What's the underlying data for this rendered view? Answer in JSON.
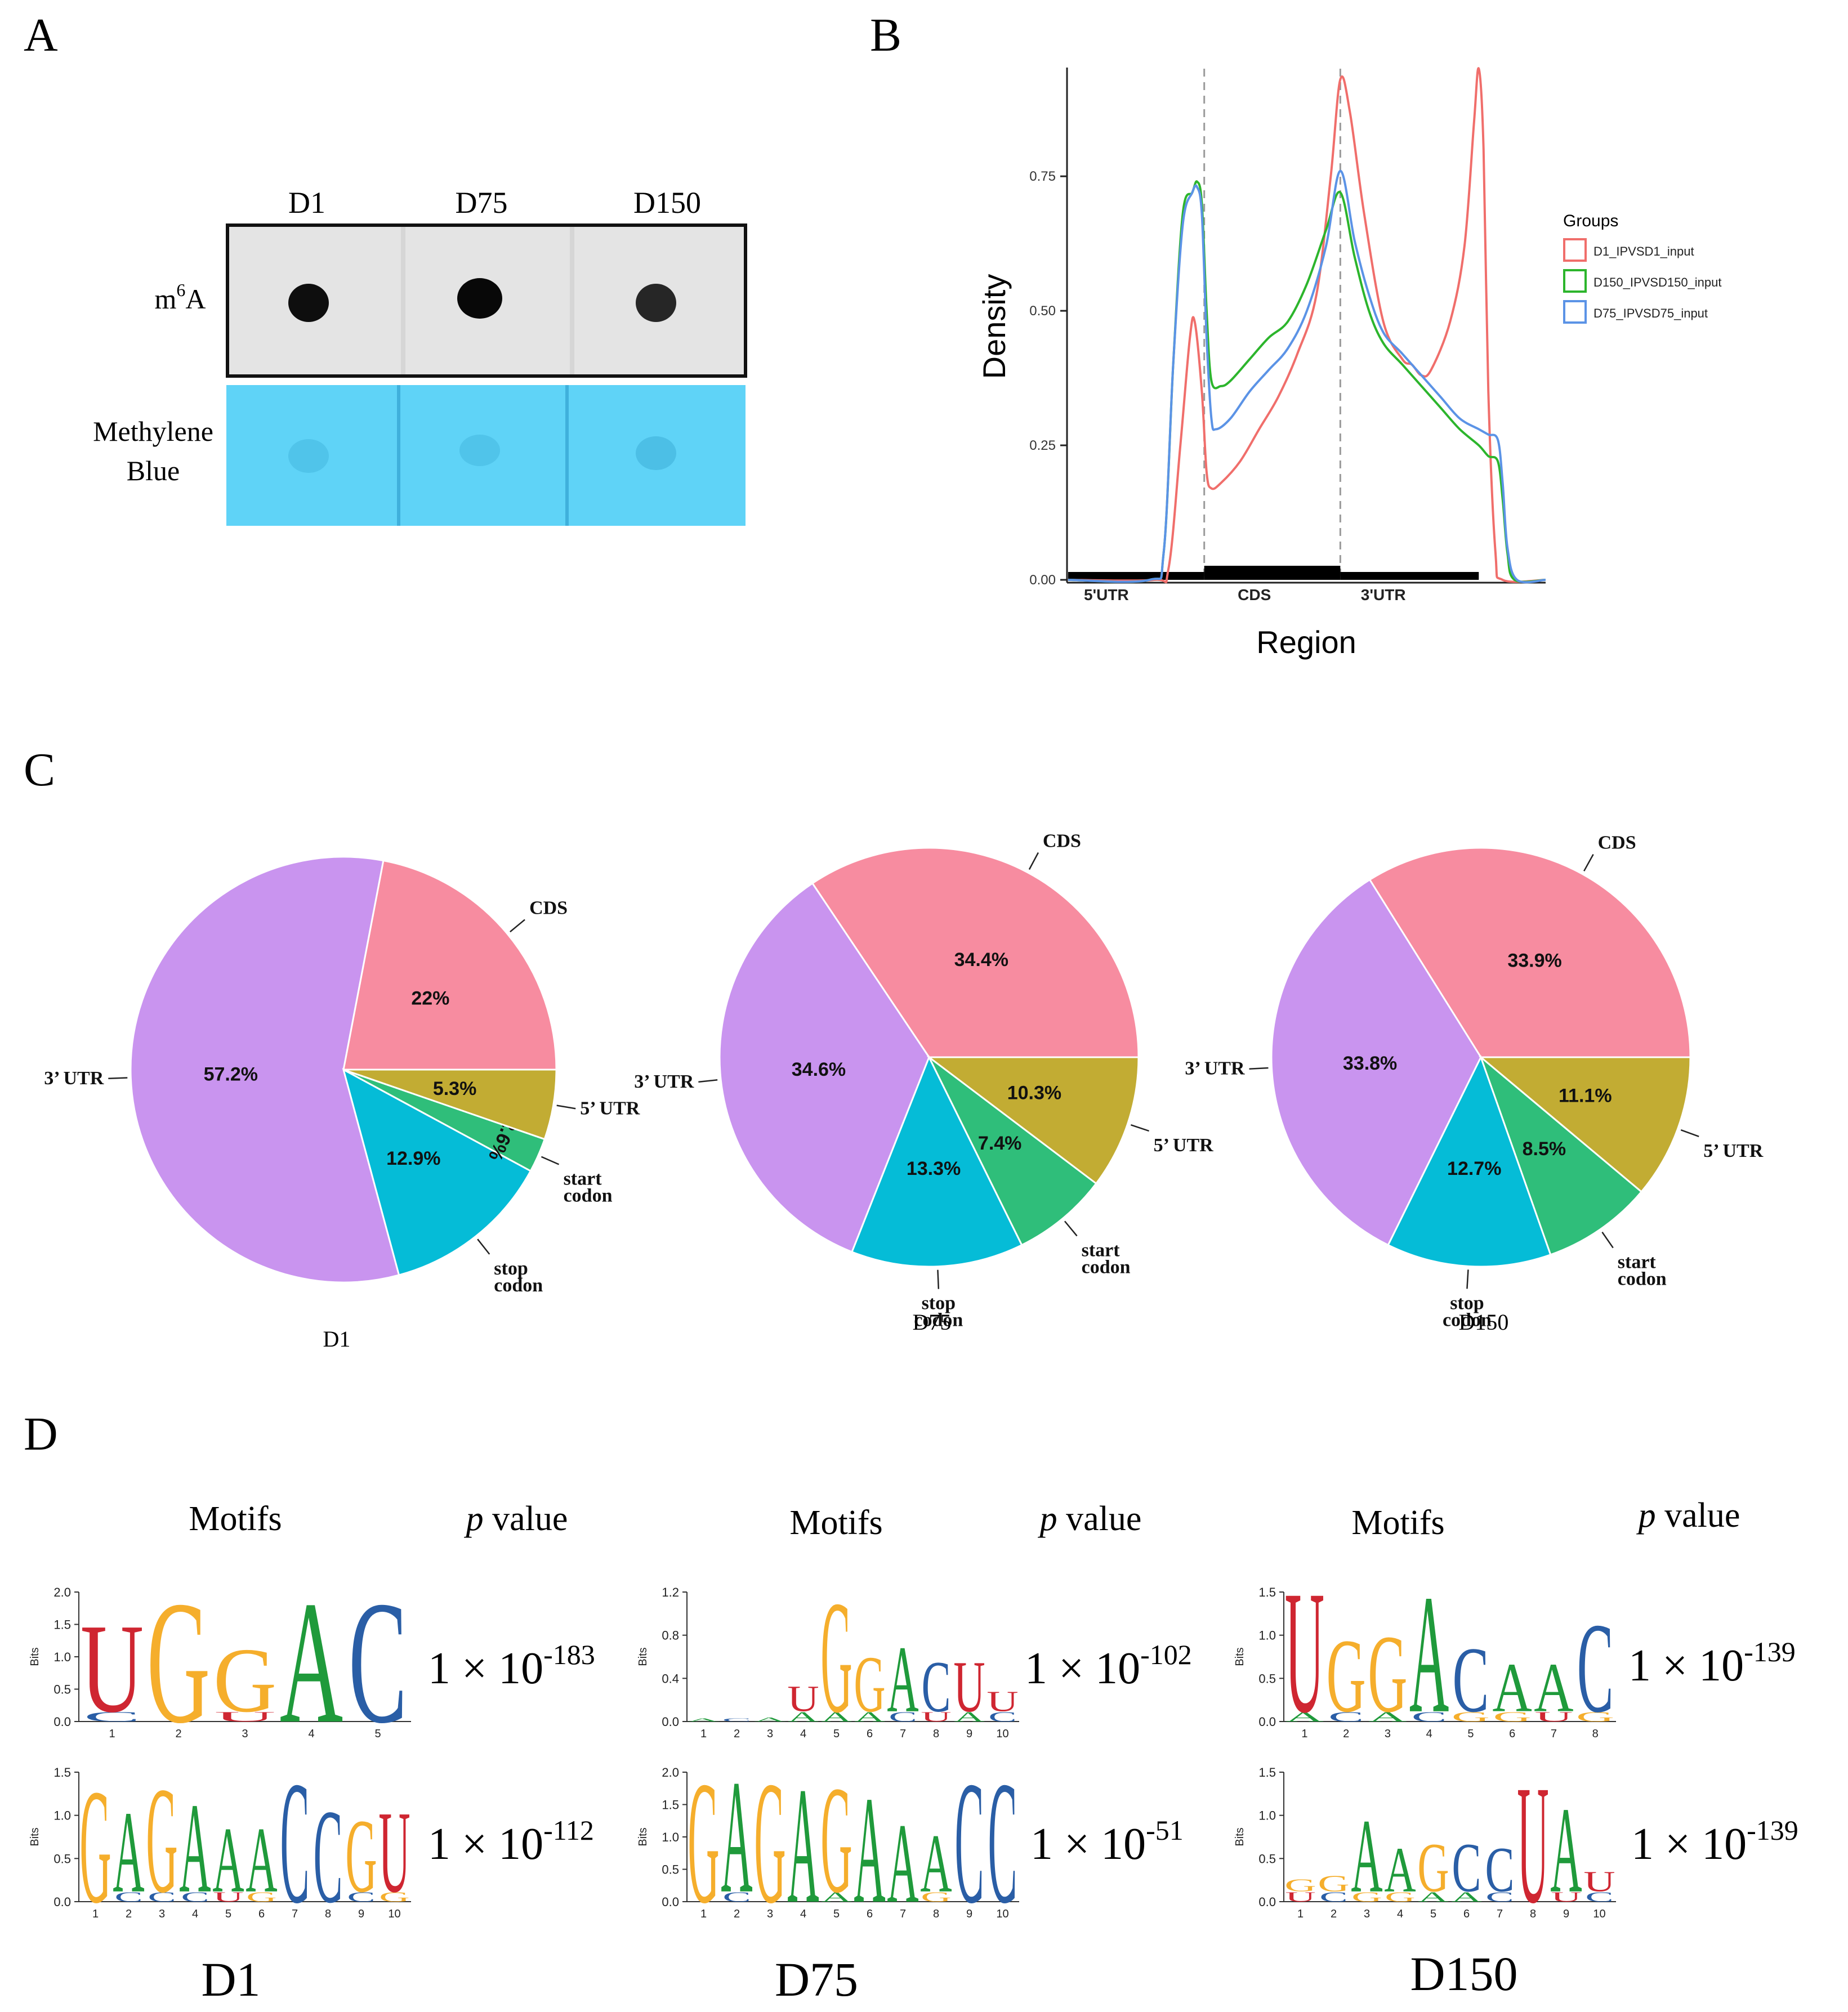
{
  "panels": {
    "a": {
      "letter": "A",
      "columns": [
        "D1",
        "D75",
        "D150"
      ],
      "row_m6a_base": "m",
      "row_m6a_sup": "6",
      "row_m6a_tail": "A",
      "row_blue_line1": "Methylene",
      "row_blue_line2": "Blue",
      "colors": {
        "blot_bg": "#e6e6e6",
        "dot": "#0d0d0d",
        "blue": "#5fd3f7"
      }
    },
    "b": {
      "letter": "B",
      "chart_data": {
        "type": "line",
        "xlabel": "Region",
        "ylabel": "Density",
        "x_categories": [
          "5'UTR",
          "CDS",
          "3'UTR"
        ],
        "y_ticks": [
          "0.00",
          "0.25",
          "0.50",
          "0.75"
        ],
        "ylim": [
          0,
          0.95
        ],
        "x_range": [
          0,
          1
        ],
        "boundaries": [
          0.285,
          0.57
        ],
        "legend_title": "Groups",
        "legend_position": "right",
        "grid": false,
        "series": [
          {
            "name": "D1_IPVSD1_input",
            "color": "#f06e6b",
            "points": [
              [
                0,
                0
              ],
              [
                0.18,
                0
              ],
              [
                0.21,
                0.02
              ],
              [
                0.235,
                0.25
              ],
              [
                0.255,
                0.45
              ],
              [
                0.265,
                0.48
              ],
              [
                0.28,
                0.35
              ],
              [
                0.29,
                0.2
              ],
              [
                0.3,
                0.17
              ],
              [
                0.32,
                0.18
              ],
              [
                0.36,
                0.22
              ],
              [
                0.4,
                0.28
              ],
              [
                0.44,
                0.34
              ],
              [
                0.48,
                0.42
              ],
              [
                0.52,
                0.53
              ],
              [
                0.55,
                0.75
              ],
              [
                0.57,
                0.93
              ],
              [
                0.59,
                0.87
              ],
              [
                0.62,
                0.68
              ],
              [
                0.66,
                0.48
              ],
              [
                0.7,
                0.41
              ],
              [
                0.72,
                0.4
              ],
              [
                0.74,
                0.38
              ],
              [
                0.76,
                0.39
              ],
              [
                0.8,
                0.48
              ],
              [
                0.83,
                0.62
              ],
              [
                0.85,
                0.85
              ],
              [
                0.86,
                0.95
              ],
              [
                0.87,
                0.8
              ],
              [
                0.88,
                0.35
              ],
              [
                0.895,
                0.05
              ],
              [
                0.91,
                0
              ],
              [
                1,
                0
              ]
            ]
          },
          {
            "name": "D150_IPVSD150_input",
            "color": "#2cb52c",
            "points": [
              [
                0,
                0
              ],
              [
                0.17,
                0
              ],
              [
                0.2,
                0.05
              ],
              [
                0.22,
                0.4
              ],
              [
                0.24,
                0.68
              ],
              [
                0.26,
                0.72
              ],
              [
                0.27,
                0.74
              ],
              [
                0.28,
                0.7
              ],
              [
                0.29,
                0.5
              ],
              [
                0.3,
                0.37
              ],
              [
                0.32,
                0.36
              ],
              [
                0.34,
                0.37
              ],
              [
                0.38,
                0.41
              ],
              [
                0.42,
                0.45
              ],
              [
                0.46,
                0.48
              ],
              [
                0.5,
                0.55
              ],
              [
                0.54,
                0.65
              ],
              [
                0.57,
                0.72
              ],
              [
                0.6,
                0.6
              ],
              [
                0.63,
                0.5
              ],
              [
                0.66,
                0.44
              ],
              [
                0.7,
                0.4
              ],
              [
                0.74,
                0.36
              ],
              [
                0.78,
                0.32
              ],
              [
                0.82,
                0.28
              ],
              [
                0.86,
                0.25
              ],
              [
                0.88,
                0.23
              ],
              [
                0.9,
                0.22
              ],
              [
                0.91,
                0.15
              ],
              [
                0.92,
                0.05
              ],
              [
                0.935,
                0
              ],
              [
                1,
                0
              ]
            ]
          },
          {
            "name": "D75_IPVSD75_input",
            "color": "#5b93e6",
            "points": [
              [
                0,
                0
              ],
              [
                0.17,
                0
              ],
              [
                0.2,
                0.05
              ],
              [
                0.22,
                0.4
              ],
              [
                0.24,
                0.66
              ],
              [
                0.26,
                0.72
              ],
              [
                0.27,
                0.73
              ],
              [
                0.28,
                0.68
              ],
              [
                0.29,
                0.45
              ],
              [
                0.3,
                0.3
              ],
              [
                0.31,
                0.28
              ],
              [
                0.34,
                0.3
              ],
              [
                0.38,
                0.35
              ],
              [
                0.42,
                0.39
              ],
              [
                0.46,
                0.43
              ],
              [
                0.5,
                0.5
              ],
              [
                0.54,
                0.62
              ],
              [
                0.57,
                0.76
              ],
              [
                0.6,
                0.63
              ],
              [
                0.63,
                0.53
              ],
              [
                0.66,
                0.46
              ],
              [
                0.7,
                0.42
              ],
              [
                0.74,
                0.38
              ],
              [
                0.78,
                0.34
              ],
              [
                0.82,
                0.3
              ],
              [
                0.86,
                0.28
              ],
              [
                0.88,
                0.27
              ],
              [
                0.9,
                0.26
              ],
              [
                0.91,
                0.18
              ],
              [
                0.92,
                0.06
              ],
              [
                0.94,
                0
              ],
              [
                1,
                0
              ]
            ]
          }
        ]
      }
    },
    "c": {
      "letter": "C",
      "chart_data": [
        {
          "type": "pie",
          "title": "D1",
          "slices": [
            {
              "label": "CDS",
              "value": 22.0,
              "text": "22%",
              "color": "#f78ca0"
            },
            {
              "label": "3’ UTR",
              "value": 57.2,
              "text": "57.2%",
              "color": "#c994ef"
            },
            {
              "label": "stop codon",
              "value": 12.9,
              "text": "12.9%",
              "color": "#05bcd7"
            },
            {
              "label": "start codon",
              "value": 2.6,
              "text": "2.6%",
              "color": "#2fbe7a"
            },
            {
              "label": "5’ UTR",
              "value": 5.3,
              "text": "5.3%",
              "color": "#c2ac33"
            }
          ]
        },
        {
          "type": "pie",
          "title": "D75",
          "slices": [
            {
              "label": "CDS",
              "value": 34.4,
              "text": "34.4%",
              "color": "#f78ca0"
            },
            {
              "label": "3’ UTR",
              "value": 34.6,
              "text": "34.6%",
              "color": "#c994ef"
            },
            {
              "label": "stop codon",
              "value": 13.3,
              "text": "13.3%",
              "color": "#05bcd7"
            },
            {
              "label": "start codon",
              "value": 7.4,
              "text": "7.4%",
              "color": "#2fbe7a"
            },
            {
              "label": "5’ UTR",
              "value": 10.3,
              "text": "10.3%",
              "color": "#c2ac33"
            }
          ]
        },
        {
          "type": "pie",
          "title": "D150",
          "slices": [
            {
              "label": "CDS",
              "value": 33.9,
              "text": "33.9%",
              "color": "#f78ca0"
            },
            {
              "label": "3’ UTR",
              "value": 33.8,
              "text": "33.8%",
              "color": "#c994ef"
            },
            {
              "label": "stop codon",
              "value": 12.7,
              "text": "12.7%",
              "color": "#05bcd7"
            },
            {
              "label": "start codon",
              "value": 8.5,
              "text": "8.5%",
              "color": "#2fbe7a"
            },
            {
              "label": "5’ UTR",
              "value": 11.1,
              "text": "11.1%",
              "color": "#c2ac33"
            }
          ]
        }
      ]
    },
    "d": {
      "letter": "D",
      "header_motifs": "Motifs",
      "header_p": "p",
      "header_value": " value",
      "times": "1 × 10",
      "axis_label": "Bits",
      "nucleotide_colors": {
        "A": "#1f9a3b",
        "C": "#2a5ea6",
        "G": "#f5ae2c",
        "U": "#cf2631"
      },
      "groups": [
        {
          "name": "D1",
          "motifs": [
            {
              "sequence": "UGGAC",
              "positions": 5,
              "ymax": 2.0,
              "y_ticks": [
                "0.0",
                "0.5",
                "1.0",
                "1.5",
                "2.0"
              ],
              "exponent": "-183",
              "main": [
                [
                  "U",
                  1.45
                ],
                [
                  "G",
                  2.0
                ],
                [
                  "G",
                  1.05
                ],
                [
                  "A",
                  2.0
                ],
                [
                  "C",
                  2.0
                ]
              ],
              "minor": [
                "C",
                "",
                "U",
                "",
                ""
              ]
            },
            {
              "sequence": "GAGAAACCGU",
              "positions": 10,
              "ymax": 1.5,
              "y_ticks": [
                "0.0",
                "0.5",
                "1.0",
                "1.5"
              ],
              "exponent": "-112",
              "main": [
                [
                  "G",
                  1.4
                ],
                [
                  "A",
                  1.0
                ],
                [
                  "G",
                  1.3
                ],
                [
                  "A",
                  1.1
                ],
                [
                  "A",
                  0.8
                ],
                [
                  "A",
                  0.8
                ],
                [
                  "C",
                  1.5
                ],
                [
                  "C",
                  1.15
                ],
                [
                  "G",
                  0.9
                ],
                [
                  "U",
                  1.0
                ]
              ],
              "minor": [
                "",
                "C",
                "C",
                "C",
                "U",
                "G",
                "",
                "",
                "C",
                "G"
              ]
            }
          ]
        },
        {
          "name": "D75",
          "motifs": [
            {
              "sequence": "GGACU",
              "positions": 10,
              "ymax": 1.2,
              "y_ticks": [
                "0.0",
                "0.4",
                "0.8",
                "1.2"
              ],
              "exponent": "-102",
              "main": [
                [
                  "A",
                  0.03
                ],
                [
                  "C",
                  0.03
                ],
                [
                  "A",
                  0.04
                ],
                [
                  "U",
                  0.25
                ],
                [
                  "G",
                  1.1
                ],
                [
                  "G",
                  0.55
                ],
                [
                  "A",
                  0.65
                ],
                [
                  "C",
                  0.5
                ],
                [
                  "U",
                  0.5
                ],
                [
                  "U",
                  0.2
                ]
              ],
              "minor": [
                "",
                "",
                "",
                "A",
                "A",
                "A",
                "C",
                "U",
                "A",
                "C"
              ]
            },
            {
              "sequence": "GAGAGAAACC",
              "positions": 10,
              "ymax": 2.0,
              "y_ticks": [
                "0.0",
                "0.5",
                "1.0",
                "1.5",
                "2.0"
              ],
              "exponent": "-51",
              "main": [
                [
                  "G",
                  2.0
                ],
                [
                  "A",
                  1.85
                ],
                [
                  "G",
                  2.0
                ],
                [
                  "A",
                  1.9
                ],
                [
                  "G",
                  1.75
                ],
                [
                  "A",
                  1.75
                ],
                [
                  "A",
                  1.3
                ],
                [
                  "A",
                  0.95
                ],
                [
                  "C",
                  2.0
                ],
                [
                  "C",
                  2.0
                ]
              ],
              "minor": [
                "",
                "C",
                "",
                "",
                "A",
                "",
                "",
                "G",
                "",
                ""
              ]
            }
          ]
        },
        {
          "name": "D150",
          "motifs": [
            {
              "sequence": "UGGACAAC",
              "positions": 8,
              "ymax": 1.5,
              "y_ticks": [
                "0.0",
                "0.5",
                "1.0",
                "1.5"
              ],
              "exponent": "-139",
              "main": [
                [
                  "U",
                  1.5
                ],
                [
                  "G",
                  0.9
                ],
                [
                  "G",
                  0.95
                ],
                [
                  "A",
                  1.45
                ],
                [
                  "C",
                  0.8
                ],
                [
                  "A",
                  0.6
                ],
                [
                  "A",
                  0.6
                ],
                [
                  "C",
                  1.1
                ]
              ],
              "minor": [
                "A",
                "C",
                "A",
                "C",
                "G",
                "G",
                "U",
                "G"
              ]
            },
            {
              "sequence": "AAGCCCUAU",
              "positions": 10,
              "ymax": 1.5,
              "y_ticks": [
                "0.0",
                "0.5",
                "1.0",
                "1.5"
              ],
              "exponent": "-139",
              "main": [
                [
                  "G",
                  0.15
                ],
                [
                  "G",
                  0.2
                ],
                [
                  "A",
                  0.9
                ],
                [
                  "A",
                  0.55
                ],
                [
                  "G",
                  0.6
                ],
                [
                  "C",
                  0.6
                ],
                [
                  "C",
                  0.55
                ],
                [
                  "U",
                  1.45
                ],
                [
                  "A",
                  1.05
                ],
                [
                  "U",
                  0.25
                ]
              ],
              "minor": [
                "U",
                "C",
                "G",
                "G",
                "A",
                "A",
                "C",
                "",
                "U",
                "C"
              ]
            }
          ]
        }
      ]
    }
  }
}
